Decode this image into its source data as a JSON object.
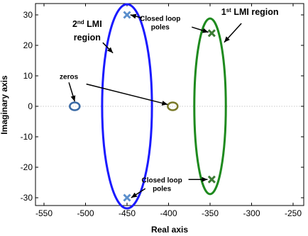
{
  "chart_data": {
    "type": "scatter",
    "title": "",
    "xlabel": "Real axis",
    "ylabel": "Imaginary axis",
    "xlim": [
      -555,
      -225
    ],
    "ylim": [
      -34,
      34
    ],
    "xticks": [
      -550,
      -500,
      -450,
      -400,
      -350,
      -300,
      -250
    ],
    "yticks": [
      -30,
      -20,
      -10,
      0,
      10,
      20,
      30
    ],
    "xtick_labels": [
      "-550",
      "-500",
      "-450",
      "-400",
      "-350",
      "-300",
      "-250"
    ],
    "ytick_labels": [
      "-30",
      "-20",
      "-10",
      "0",
      "10",
      "20",
      "30"
    ],
    "grid": false,
    "reference_line_y": 0,
    "series": [
      {
        "kind": "pole",
        "color": "#5b8fcc",
        "points": [
          [
            -450,
            30
          ],
          [
            -450,
            -30
          ]
        ]
      },
      {
        "kind": "pole",
        "color": "#3b7a33",
        "points": [
          [
            -348,
            24
          ],
          [
            -348,
            -24
          ]
        ]
      },
      {
        "kind": "zero",
        "color": "#3a6aa5",
        "points": [
          [
            -513,
            0
          ]
        ]
      },
      {
        "kind": "zero",
        "color": "#7a7a2a",
        "points": [
          [
            -395,
            0
          ]
        ]
      }
    ],
    "regions": [
      {
        "color": "#1a1aff",
        "center": [
          -450,
          0
        ],
        "radius_x": 30,
        "radius_y": 33.5
      },
      {
        "color": "#1e8a1e",
        "center": [
          -350,
          0
        ],
        "radius_x": 19,
        "radius_y": 28.8
      }
    ],
    "annotations": [
      {
        "id": "lmi2",
        "line1_main": "2",
        "line1_sup": "nd",
        "line1_rest": " LMI",
        "line2": "region",
        "data_anchor": [
          -498,
          26
        ]
      },
      {
        "id": "lmi1",
        "main": "1",
        "sup": "st",
        "rest": " LMI region",
        "data_anchor": [
          -302,
          30
        ]
      },
      {
        "id": "poles_top",
        "line1": "Closed loop",
        "line2": "poles",
        "data_anchor": [
          -410,
          28
        ]
      },
      {
        "id": "poles_bottom",
        "line1": "Closed loop",
        "line2": "poles",
        "data_anchor": [
          -408,
          -25
        ]
      },
      {
        "id": "zeros",
        "text": "zeros",
        "data_anchor": [
          -520,
          9
        ]
      }
    ]
  }
}
